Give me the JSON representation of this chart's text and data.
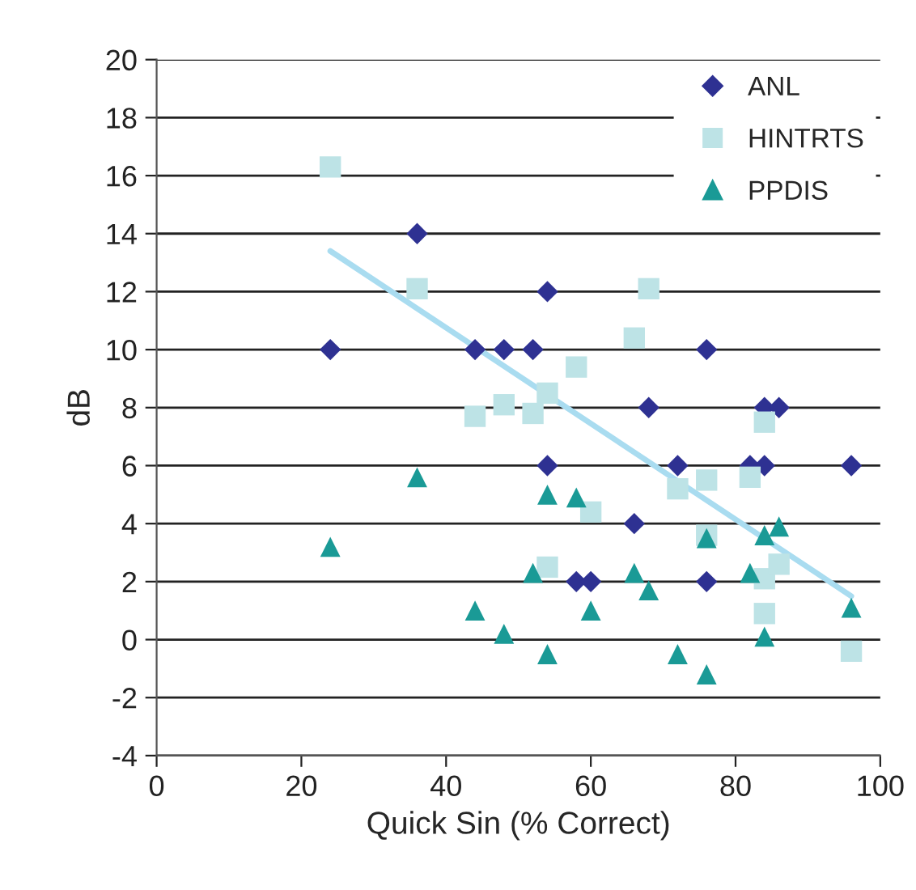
{
  "chart_data": {
    "type": "scatter",
    "xlabel": "Quick Sin (% Correct)",
    "ylabel": "dB",
    "xlim": [
      0,
      100
    ],
    "xticks": [
      0,
      20,
      40,
      60,
      80,
      100
    ],
    "ylim": [
      -4,
      20
    ],
    "yticks": [
      -4,
      -2,
      0,
      2,
      4,
      6,
      8,
      10,
      12,
      14,
      16,
      18,
      20
    ],
    "grid": "y",
    "legend": "top right",
    "series": [
      {
        "name": "ANL",
        "marker": "diamond",
        "color": "#2e3192",
        "x": [
          24,
          36,
          44,
          48,
          52,
          54,
          54,
          58,
          60,
          66,
          68,
          72,
          76,
          76,
          82,
          84,
          84,
          86,
          96
        ],
        "values": [
          10,
          14,
          10,
          10,
          10,
          12,
          6,
          2,
          2,
          4,
          8,
          6,
          10,
          2,
          6,
          6,
          8,
          8,
          6
        ]
      },
      {
        "name": "HINTRTS",
        "marker": "square",
        "color": "#bde3e6",
        "x": [
          24,
          36,
          44,
          48,
          52,
          54,
          54,
          58,
          60,
          66,
          68,
          72,
          76,
          76,
          82,
          84,
          84,
          84,
          86,
          96
        ],
        "values": [
          16.3,
          12.1,
          7.7,
          8.1,
          7.8,
          8.5,
          2.5,
          9.4,
          4.4,
          10.4,
          12.1,
          5.2,
          5.5,
          3.6,
          5.6,
          7.5,
          2.1,
          0.9,
          2.6,
          -0.4
        ]
      },
      {
        "name": "PPDIS",
        "marker": "triangle",
        "color": "#1a9a96",
        "x": [
          24,
          36,
          44,
          48,
          52,
          54,
          54,
          58,
          60,
          66,
          68,
          72,
          76,
          76,
          82,
          84,
          84,
          86,
          96
        ],
        "values": [
          3.2,
          5.6,
          1.0,
          0.2,
          2.3,
          5.0,
          -0.5,
          4.9,
          1.0,
          2.3,
          1.7,
          -0.5,
          -1.2,
          3.5,
          2.3,
          3.6,
          0.1,
          3.9,
          1.1
        ]
      },
      {
        "type": "line",
        "color": "#a9dcf0",
        "x": [
          24,
          96
        ],
        "values": [
          13.4,
          1.5
        ]
      }
    ]
  }
}
